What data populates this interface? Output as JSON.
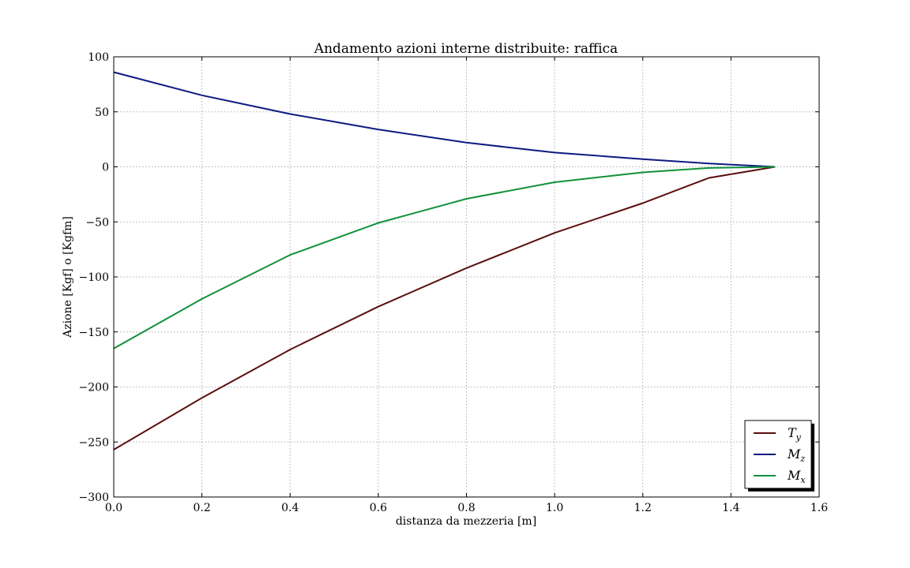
{
  "chart_data": {
    "type": "line",
    "title": "Andamento azioni interne distribuite: raffica",
    "xlabel": "distanza da mezzeria [m]",
    "ylabel": "Azione [Kgf] o [Kgfm]",
    "xlim": [
      0.0,
      1.6
    ],
    "ylim": [
      -300,
      100
    ],
    "xticks": [
      "0.0",
      "0.2",
      "0.4",
      "0.6",
      "0.8",
      "1.0",
      "1.2",
      "1.4",
      "1.6"
    ],
    "yticks": [
      "100",
      "50",
      "0",
      "−50",
      "−100",
      "−150",
      "−200",
      "−250",
      "−300"
    ],
    "grid": true,
    "legend_position": "lower-right",
    "series": [
      {
        "name": "Ty",
        "color": "#5a0f0f",
        "x": [
          0.0,
          0.2,
          0.4,
          0.6,
          0.8,
          1.0,
          1.2,
          1.35,
          1.5
        ],
        "y": [
          -257,
          -210,
          -166,
          -127,
          -92,
          -60,
          -33,
          -10,
          0
        ]
      },
      {
        "name": "Mz",
        "color": "#0d1a80",
        "x": [
          0.0,
          0.2,
          0.4,
          0.6,
          0.8,
          1.0,
          1.2,
          1.35,
          1.5
        ],
        "y": [
          86,
          65,
          48,
          34,
          22,
          13,
          7,
          3,
          0
        ]
      },
      {
        "name": "Mx",
        "color": "#11913a",
        "x": [
          0.0,
          0.2,
          0.4,
          0.6,
          0.8,
          1.0,
          1.2,
          1.35,
          1.5
        ],
        "y": [
          -165,
          -120,
          -80,
          -51,
          -29,
          -14,
          -5,
          -1,
          0
        ]
      }
    ]
  }
}
